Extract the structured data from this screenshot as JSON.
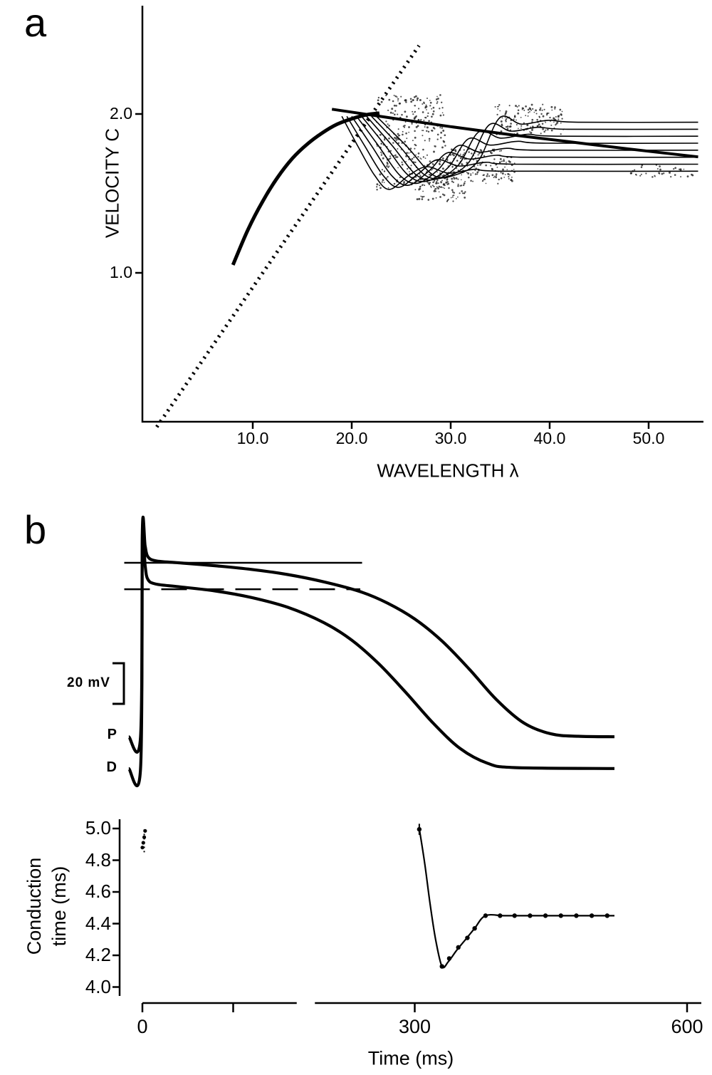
{
  "panels": {
    "a": {
      "letter": "a",
      "xlabel": "WAVELENGTH λ",
      "ylabel": "VELOCITY C",
      "x_tick_labels": [
        "10.0",
        "20.0",
        "30.0",
        "40.0",
        "50.0"
      ],
      "y_tick_labels": [
        "2.0",
        "1.0"
      ]
    },
    "b": {
      "letter": "b",
      "scale_bar": "20 mV",
      "trace_label_p": "P",
      "trace_label_d": "D",
      "ylabel_line1": "Conduction",
      "ylabel_line2": "time (ms)",
      "xlabel": "Time (ms)",
      "y_tick_labels": [
        "5.0",
        "4.8",
        "4.6",
        "4.4",
        "4.2",
        "4.0"
      ],
      "x_tick_labels": [
        "0",
        "300",
        "600"
      ]
    }
  },
  "chart_data": [
    {
      "id": "panel_a_dispersion",
      "type": "line",
      "xlabel": "WAVELENGTH λ",
      "ylabel": "VELOCITY C",
      "xlim": [
        0,
        55
      ],
      "ylim": [
        0,
        2.6
      ],
      "x_ticks": [
        10,
        20,
        30,
        40,
        50
      ],
      "y_ticks": [
        2.0,
        1.0
      ],
      "series": [
        {
          "name": "dotted-reference-line",
          "role": "dotted",
          "width": 5,
          "points": [
            [
              0.3,
              0.03
            ],
            [
              26.8,
              2.43
            ]
          ]
        },
        {
          "name": "rising-velocity-curve",
          "role": "thick",
          "width": 5,
          "points": [
            [
              8,
              1.05
            ],
            [
              9.5,
              1.27
            ],
            [
              11,
              1.45
            ],
            [
              12.5,
              1.6
            ],
            [
              14,
              1.72
            ],
            [
              15.5,
              1.81
            ],
            [
              17,
              1.88
            ],
            [
              18.5,
              1.935
            ],
            [
              20,
              1.97
            ],
            [
              21.5,
              1.995
            ],
            [
              22.8,
              2.005
            ]
          ]
        },
        {
          "name": "declining-velocity-line",
          "role": "thick",
          "width": 4,
          "points": [
            [
              18,
              2.03
            ],
            [
              24,
              1.975
            ],
            [
              30,
              1.92
            ],
            [
              36,
              1.87
            ],
            [
              42,
              1.825
            ],
            [
              48,
              1.78
            ],
            [
              55,
              1.73
            ]
          ]
        },
        {
          "name": "oscillatory-branch-1",
          "role": "thin",
          "width": 1.6,
          "points": [
            [
              19.0,
              1.985
            ],
            [
              20.6,
              1.8
            ],
            [
              22.3,
              1.615
            ],
            [
              23.8,
              1.525
            ],
            [
              25.8,
              1.615
            ],
            [
              27.6,
              1.668
            ],
            [
              29.8,
              1.628
            ],
            [
              32.5,
              1.652
            ],
            [
              35.5,
              1.64
            ],
            [
              55,
              1.64
            ]
          ]
        },
        {
          "name": "oscillatory-branch-2",
          "role": "thin",
          "width": 1.6,
          "points": [
            [
              19.5,
              1.985
            ],
            [
              21.3,
              1.8
            ],
            [
              23.15,
              1.615
            ],
            [
              24.75,
              1.538
            ],
            [
              26.8,
              1.628
            ],
            [
              28.65,
              1.712
            ],
            [
              30.85,
              1.672
            ],
            [
              33.55,
              1.696
            ],
            [
              36.55,
              1.684
            ],
            [
              55,
              1.684
            ]
          ]
        },
        {
          "name": "oscillatory-branch-3",
          "role": "thin",
          "width": 1.6,
          "points": [
            [
              20.0,
              1.985
            ],
            [
              22.0,
              1.8
            ],
            [
              24.0,
              1.615
            ],
            [
              25.7,
              1.551
            ],
            [
              27.8,
              1.641
            ],
            [
              29.7,
              1.756
            ],
            [
              31.9,
              1.716
            ],
            [
              34.6,
              1.74
            ],
            [
              37.6,
              1.728
            ],
            [
              55,
              1.728
            ]
          ]
        },
        {
          "name": "oscillatory-branch-4",
          "role": "thin",
          "width": 1.6,
          "points": [
            [
              20.5,
              1.985
            ],
            [
              22.7,
              1.8
            ],
            [
              24.85,
              1.615
            ],
            [
              26.65,
              1.564
            ],
            [
              28.8,
              1.654
            ],
            [
              30.75,
              1.8
            ],
            [
              32.95,
              1.76
            ],
            [
              35.65,
              1.784
            ],
            [
              38.65,
              1.772
            ],
            [
              55,
              1.772
            ]
          ]
        },
        {
          "name": "oscillatory-branch-5",
          "role": "thin",
          "width": 1.6,
          "points": [
            [
              21.0,
              1.985
            ],
            [
              23.4,
              1.8
            ],
            [
              25.7,
              1.615
            ],
            [
              27.6,
              1.577
            ],
            [
              29.8,
              1.667
            ],
            [
              31.8,
              1.844
            ],
            [
              34.0,
              1.804
            ],
            [
              36.7,
              1.828
            ],
            [
              39.7,
              1.816
            ],
            [
              55,
              1.816
            ]
          ]
        },
        {
          "name": "oscillatory-branch-6",
          "role": "thin",
          "width": 1.6,
          "points": [
            [
              21.5,
              1.985
            ],
            [
              24.1,
              1.8
            ],
            [
              26.55,
              1.615
            ],
            [
              28.55,
              1.59
            ],
            [
              30.8,
              1.68
            ],
            [
              32.85,
              1.888
            ],
            [
              35.05,
              1.848
            ],
            [
              37.75,
              1.872
            ],
            [
              40.75,
              1.86
            ],
            [
              55,
              1.86
            ]
          ]
        },
        {
          "name": "oscillatory-branch-7",
          "role": "thin",
          "width": 1.6,
          "points": [
            [
              22.0,
              1.985
            ],
            [
              24.8,
              1.8
            ],
            [
              27.4,
              1.615
            ],
            [
              29.5,
              1.603
            ],
            [
              31.8,
              1.693
            ],
            [
              33.9,
              1.932
            ],
            [
              36.1,
              1.892
            ],
            [
              38.8,
              1.916
            ],
            [
              41.8,
              1.904
            ],
            [
              55,
              1.904
            ]
          ]
        },
        {
          "name": "oscillatory-branch-8",
          "role": "thin",
          "width": 1.6,
          "points": [
            [
              22.5,
              1.985
            ],
            [
              25.5,
              1.8
            ],
            [
              28.25,
              1.615
            ],
            [
              30.45,
              1.616
            ],
            [
              32.8,
              1.706
            ],
            [
              34.95,
              1.976
            ],
            [
              37.15,
              1.936
            ],
            [
              39.85,
              1.96
            ],
            [
              42.85,
              1.948
            ],
            [
              55,
              1.948
            ]
          ]
        }
      ],
      "stipple_regions": [
        {
          "x0": 22.5,
          "x1": 29.5,
          "y0": 1.52,
          "y1": 2.12,
          "count": 330,
          "seed": 7
        },
        {
          "x0": 26.5,
          "x1": 31.5,
          "y0": 1.45,
          "y1": 1.62,
          "count": 90,
          "seed": 11
        },
        {
          "x0": 29.5,
          "x1": 36.5,
          "y0": 1.56,
          "y1": 1.78,
          "count": 170,
          "seed": 23
        },
        {
          "x0": 34.5,
          "x1": 41.5,
          "y0": 1.87,
          "y1": 2.06,
          "count": 150,
          "seed": 41
        },
        {
          "x0": 48.0,
          "x1": 55.0,
          "y0": 1.6,
          "y1": 1.68,
          "count": 35,
          "seed": 55
        }
      ]
    },
    {
      "id": "panel_b_action_potentials",
      "type": "line",
      "scale_bar_label": "20 mV",
      "trace_labels": [
        "P",
        "D"
      ],
      "reference_lines": [
        {
          "level": 0.86,
          "t0": -20,
          "t1": 242,
          "style": "solid"
        },
        {
          "level": 0.752,
          "t0": -20,
          "t1": 240,
          "style": "dashed"
        }
      ],
      "series": [
        {
          "name": "P-trace",
          "points": [
            [
              -15,
              0.148
            ],
            [
              -2,
              0.148
            ],
            [
              0,
              1.0
            ],
            [
              3,
              0.93
            ],
            [
              6,
              0.885
            ],
            [
              15,
              0.868
            ],
            [
              40,
              0.86
            ],
            [
              80,
              0.848
            ],
            [
              120,
              0.833
            ],
            [
              160,
              0.812
            ],
            [
              200,
              0.782
            ],
            [
              240,
              0.742
            ],
            [
              270,
              0.695
            ],
            [
              300,
              0.63
            ],
            [
              330,
              0.54
            ],
            [
              360,
              0.425
            ],
            [
              390,
              0.3
            ],
            [
              420,
              0.205
            ],
            [
              450,
              0.16
            ],
            [
              480,
              0.15
            ],
            [
              520,
              0.148
            ]
          ]
        },
        {
          "name": "D-trace",
          "points": [
            [
              -15,
              0.018
            ],
            [
              -2,
              0.018
            ],
            [
              0,
              0.97
            ],
            [
              3,
              0.85
            ],
            [
              6,
              0.792
            ],
            [
              15,
              0.773
            ],
            [
              40,
              0.762
            ],
            [
              80,
              0.745
            ],
            [
              120,
              0.718
            ],
            [
              160,
              0.678
            ],
            [
              200,
              0.615
            ],
            [
              230,
              0.545
            ],
            [
              260,
              0.448
            ],
            [
              290,
              0.33
            ],
            [
              320,
              0.205
            ],
            [
              350,
              0.1
            ],
            [
              380,
              0.04
            ],
            [
              410,
              0.022
            ],
            [
              520,
              0.018
            ]
          ]
        }
      ]
    },
    {
      "id": "panel_b_conduction_time",
      "type": "scatter-line",
      "xlabel": "Time (ms)",
      "ylabel": "Conduction time (ms)",
      "ylim": [
        4.0,
        5.0
      ],
      "y_ticks": [
        5.0,
        4.8,
        4.6,
        4.4,
        4.2,
        4.0
      ],
      "x_ticks": [
        0,
        100,
        300,
        600
      ],
      "x_tick_label_values": [
        0,
        300,
        600
      ],
      "axis_break": [
        170,
        190
      ],
      "early_guide": {
        "t": 2,
        "v0": 4.85,
        "v1": 5.0
      },
      "early_points": [
        [
          0,
          4.88
        ],
        [
          1,
          4.91
        ],
        [
          2,
          4.945
        ],
        [
          3,
          4.985
        ]
      ],
      "error_bar": {
        "t": 305,
        "v0": 4.96,
        "v1": 5.03
      },
      "line": [
        [
          305,
          5.0
        ],
        [
          311,
          4.78
        ],
        [
          317,
          4.52
        ],
        [
          323,
          4.3
        ],
        [
          330,
          4.13
        ],
        [
          337,
          4.16
        ],
        [
          346,
          4.23
        ],
        [
          356,
          4.3
        ],
        [
          366,
          4.37
        ],
        [
          378,
          4.45
        ],
        [
          400,
          4.45
        ],
        [
          440,
          4.45
        ],
        [
          480,
          4.45
        ],
        [
          520,
          4.45
        ]
      ],
      "markers": [
        [
          305,
          4.995
        ],
        [
          330,
          4.13
        ],
        [
          338,
          4.18
        ],
        [
          348,
          4.25
        ],
        [
          358,
          4.31
        ],
        [
          366,
          4.37
        ],
        [
          378,
          4.45
        ],
        [
          394,
          4.45
        ],
        [
          410,
          4.45
        ],
        [
          427,
          4.45
        ],
        [
          444,
          4.45
        ],
        [
          461,
          4.45
        ],
        [
          478,
          4.45
        ],
        [
          495,
          4.45
        ],
        [
          512,
          4.45
        ]
      ]
    }
  ]
}
